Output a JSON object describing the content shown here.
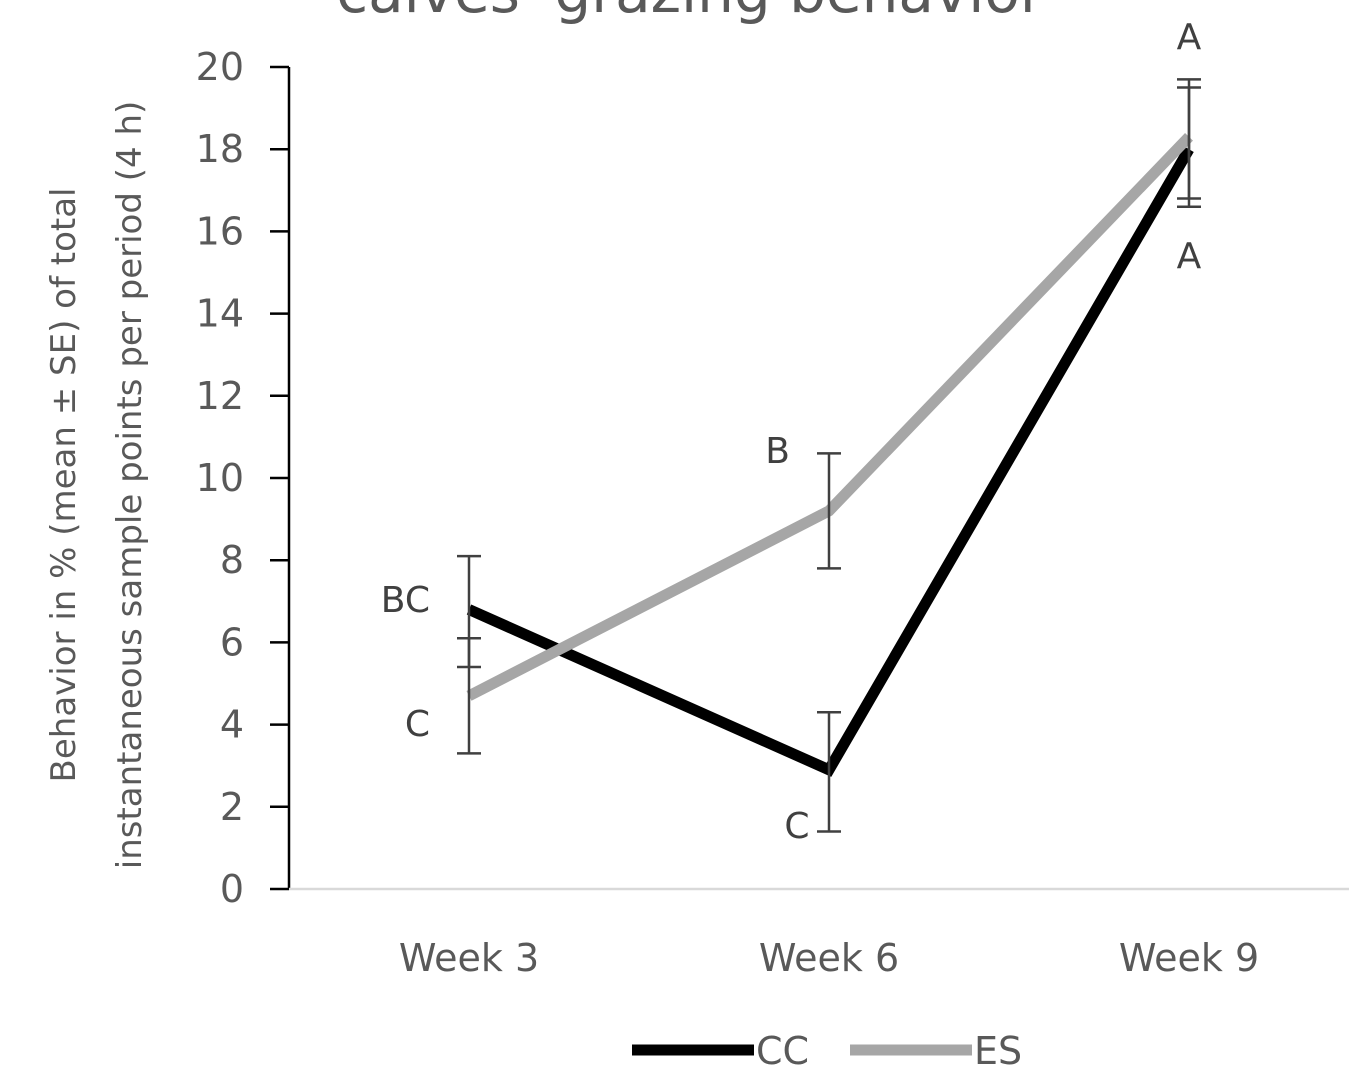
{
  "chart_data": {
    "type": "line",
    "title": "calves' grazing behavior",
    "ylabel_lines": [
      "Behavior in % (mean ± SE) of total",
      "instantaneous sample points per period (4 h)"
    ],
    "xlabel": "",
    "categories": [
      "Week 3",
      "Week 6",
      "Week 9"
    ],
    "ylim": [
      0,
      20
    ],
    "yticks": [
      0,
      2,
      4,
      6,
      8,
      10,
      12,
      14,
      16,
      18,
      20
    ],
    "grid": false,
    "legend_position": "bottom",
    "series": [
      {
        "name": "CC",
        "color": "#000000",
        "values": [
          6.8,
          2.9,
          18.0
        ],
        "error_low": [
          5.4,
          1.4,
          16.6
        ],
        "error_high": [
          8.1,
          4.3,
          19.5
        ],
        "letters": [
          "BC",
          "C",
          "A"
        ]
      },
      {
        "name": "ES",
        "color": "#a6a6a6",
        "values": [
          4.7,
          9.2,
          18.3
        ],
        "error_low": [
          3.3,
          7.8,
          16.8
        ],
        "error_high": [
          6.1,
          10.6,
          19.7
        ],
        "letters": [
          "C",
          "B",
          "A"
        ]
      }
    ]
  }
}
